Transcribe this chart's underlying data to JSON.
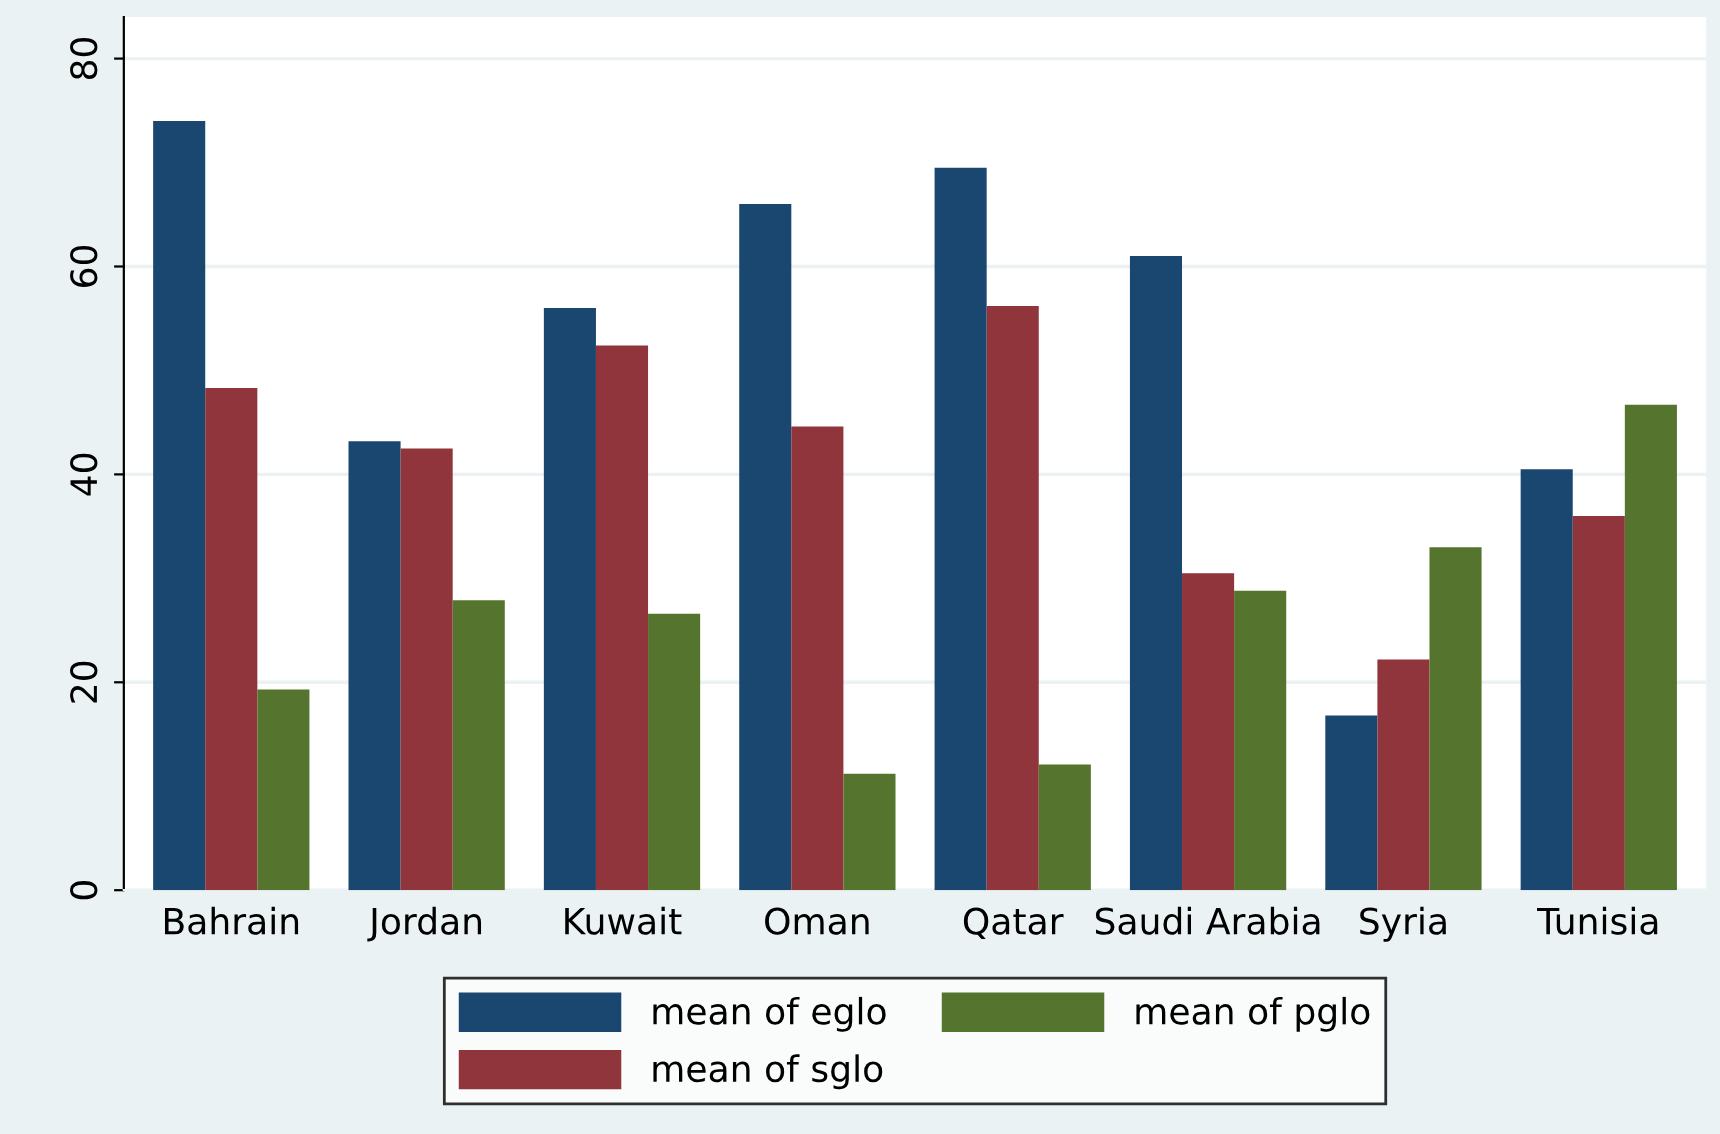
{
  "chart_data": {
    "type": "bar",
    "categories": [
      "Bahrain",
      "Jordan",
      "Kuwait",
      "Oman",
      "Qatar",
      "Saudi Arabia",
      "Syria",
      "Tunisia"
    ],
    "series": [
      {
        "name": "mean of eglo",
        "color": "#1a476f",
        "values": [
          74,
          43.2,
          56,
          66,
          69.5,
          61,
          16.8,
          40.5
        ]
      },
      {
        "name": "mean of sglo",
        "color": "#90353b",
        "values": [
          48.3,
          42.5,
          52.4,
          44.6,
          56.2,
          30.5,
          22.2,
          36
        ]
      },
      {
        "name": "mean of pglo",
        "color": "#55752f",
        "values": [
          19.3,
          27.9,
          26.6,
          11.2,
          12.1,
          28.8,
          33,
          46.7
        ]
      }
    ],
    "ylim": [
      0,
      84
    ],
    "yticks": [
      0,
      20,
      40,
      60,
      80
    ],
    "grid": "y",
    "legend": "bottom"
  }
}
